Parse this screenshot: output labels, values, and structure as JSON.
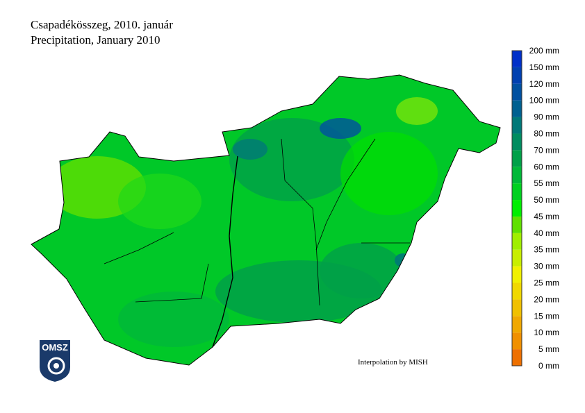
{
  "title": {
    "line1": "Csapadékösszeg, 2010. január",
    "line2": "Precipitation, January 2010"
  },
  "credit": "Interpolation by MISH",
  "logo": {
    "text": "OMSZ"
  },
  "legend": {
    "unit": "mm",
    "labels": [
      "0 mm",
      "5 mm",
      "10 mm",
      "15 mm",
      "20 mm",
      "25 mm",
      "30 mm",
      "35 mm",
      "40 mm",
      "45 mm",
      "50 mm",
      "55 mm",
      "60 mm",
      "70 mm",
      "80 mm",
      "90 mm",
      "100 mm",
      "120 mm",
      "150 mm",
      "200 mm"
    ],
    "colors": [
      "#ee7000",
      "#f09000",
      "#f0a800",
      "#f0c000",
      "#f0d800",
      "#f0f000",
      "#c8ee00",
      "#a0ee00",
      "#60e000",
      "#00ee00",
      "#00d020",
      "#00b838",
      "#00a048",
      "#008c60",
      "#007878",
      "#006090",
      "#0050a0",
      "#0040b0",
      "#0030c8",
      "#0010f0"
    ]
  }
}
